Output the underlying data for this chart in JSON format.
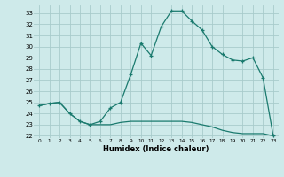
{
  "curve1_x": [
    0,
    1,
    2,
    3,
    4,
    5,
    6,
    7,
    8,
    9,
    10,
    11,
    12,
    13,
    14,
    15,
    16,
    17,
    18,
    19,
    20,
    21,
    22,
    23
  ],
  "curve1_y": [
    24.7,
    24.9,
    25.0,
    24.0,
    23.3,
    23.0,
    23.3,
    24.5,
    25.0,
    27.5,
    30.3,
    29.2,
    31.8,
    33.2,
    33.2,
    32.3,
    31.5,
    30.0,
    29.3,
    28.8,
    28.7,
    29.0,
    27.2,
    22.0
  ],
  "curve2_x": [
    0,
    1,
    2,
    3,
    4,
    5,
    6,
    7,
    8,
    9,
    10,
    11,
    12,
    13,
    14,
    15,
    16,
    17,
    18,
    19,
    20,
    21,
    22,
    23
  ],
  "curve2_y": [
    24.7,
    24.9,
    25.0,
    24.0,
    23.3,
    23.0,
    23.0,
    23.0,
    23.2,
    23.3,
    23.3,
    23.3,
    23.3,
    23.3,
    23.3,
    23.2,
    23.0,
    22.8,
    22.5,
    22.3,
    22.2,
    22.2,
    22.2,
    22.0
  ],
  "line_color": "#1a7a6e",
  "bg_color": "#ceeaea",
  "grid_color": "#a8cccc",
  "xlabel": "Humidex (Indice chaleur)",
  "xlim": [
    -0.5,
    23.5
  ],
  "ylim": [
    21.8,
    33.7
  ],
  "yticks": [
    22,
    23,
    24,
    25,
    26,
    27,
    28,
    29,
    30,
    31,
    32,
    33
  ],
  "xticks": [
    0,
    1,
    2,
    3,
    4,
    5,
    6,
    7,
    8,
    9,
    10,
    11,
    12,
    13,
    14,
    15,
    16,
    17,
    18,
    19,
    20,
    21,
    22,
    23
  ]
}
